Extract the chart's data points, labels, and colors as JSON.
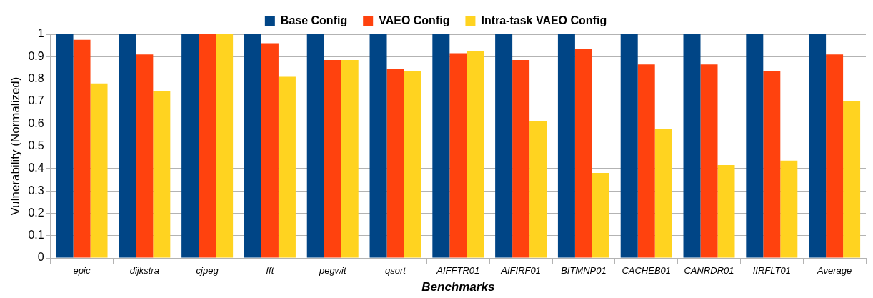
{
  "chart_data": {
    "type": "bar",
    "xlabel": "Benchmarks",
    "ylabel": "Vulnerability (Normalized)",
    "categories": [
      "epic",
      "dijkstra",
      "cjpeg",
      "fft",
      "pegwit",
      "qsort",
      "AIFFTR01",
      "AIFIRF01",
      "BITMNP01",
      "CACHEB01",
      "CANRDR01",
      "IIRFLT01",
      "Average"
    ],
    "series": [
      {
        "name": "Base Config",
        "color": "#004586",
        "values": [
          1,
          1,
          1,
          1,
          1,
          1,
          1,
          1,
          1,
          1,
          1,
          1,
          1
        ]
      },
      {
        "name": "VAEO Config",
        "color": "#ff420e",
        "values": [
          0.975,
          0.91,
          1,
          0.96,
          0.885,
          0.845,
          0.915,
          0.885,
          0.935,
          0.865,
          0.865,
          0.835,
          0.91
        ]
      },
      {
        "name": "Intra-task VAEO Config",
        "color": "#ffd320",
        "values": [
          0.78,
          0.745,
          1,
          0.81,
          0.885,
          0.835,
          0.925,
          0.61,
          0.38,
          0.575,
          0.415,
          0.435,
          0.7
        ]
      }
    ],
    "ylim": [
      0,
      1
    ],
    "yticks": [
      0,
      0.1,
      0.2,
      0.3,
      0.4,
      0.5,
      0.6,
      0.7,
      0.8,
      0.9,
      1
    ],
    "grid": "y",
    "legend": "top"
  }
}
